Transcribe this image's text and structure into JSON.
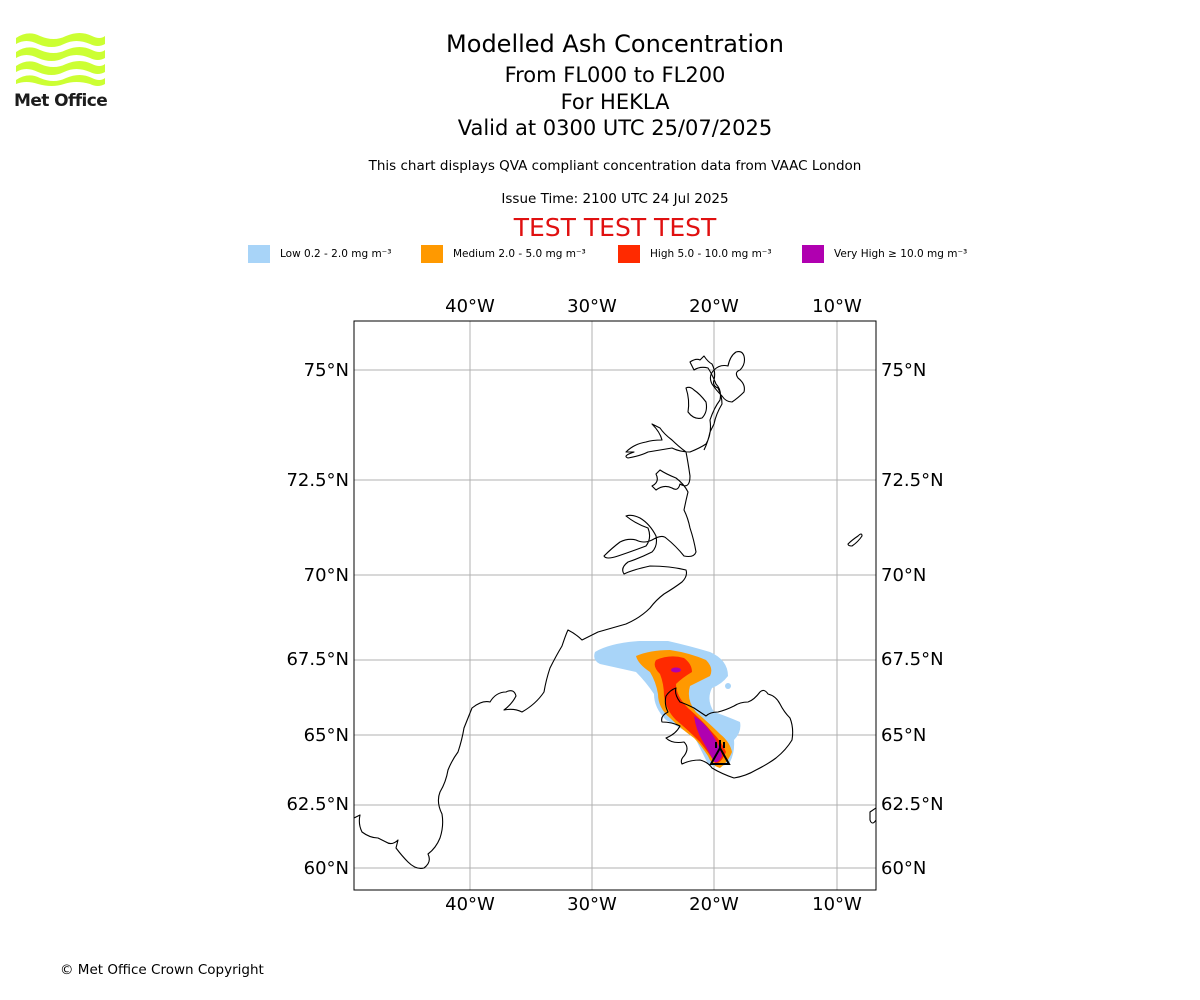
{
  "logo": {
    "text": "Met Office",
    "color": "#ccff33"
  },
  "titles": {
    "line1": "Modelled Ash Concentration",
    "line2": "From FL000 to FL200",
    "line3": "For HEKLA",
    "line4": "Valid at 0300 UTC 25/07/2025"
  },
  "subtitle": "This chart displays QVA compliant concentration data from VAAC London",
  "issue_time": "Issue Time: 2100 UTC 24 Jul 2025",
  "test_banner": "TEST TEST TEST",
  "legend": [
    {
      "label": "Low 0.2 - 2.0 mg m⁻³",
      "color": "#a8d4f8"
    },
    {
      "label": "Medium 2.0 - 5.0 mg m⁻³",
      "color": "#ff9900"
    },
    {
      "label": "High 5.0 - 10.0 mg m⁻³",
      "color": "#ff2a00"
    },
    {
      "label": "Very High ≥ 10.0 mg m⁻³",
      "color": "#b000b0"
    }
  ],
  "map": {
    "lon_ticks": [
      "40°W",
      "30°W",
      "20°W",
      "10°W"
    ],
    "lat_ticks": [
      "75°N",
      "72.5°N",
      "70°N",
      "67.5°N",
      "65°N",
      "62.5°N",
      "60°N"
    ],
    "volcano": "HEKLA",
    "grid": true
  },
  "copyright": "© Met Office Crown Copyright"
}
